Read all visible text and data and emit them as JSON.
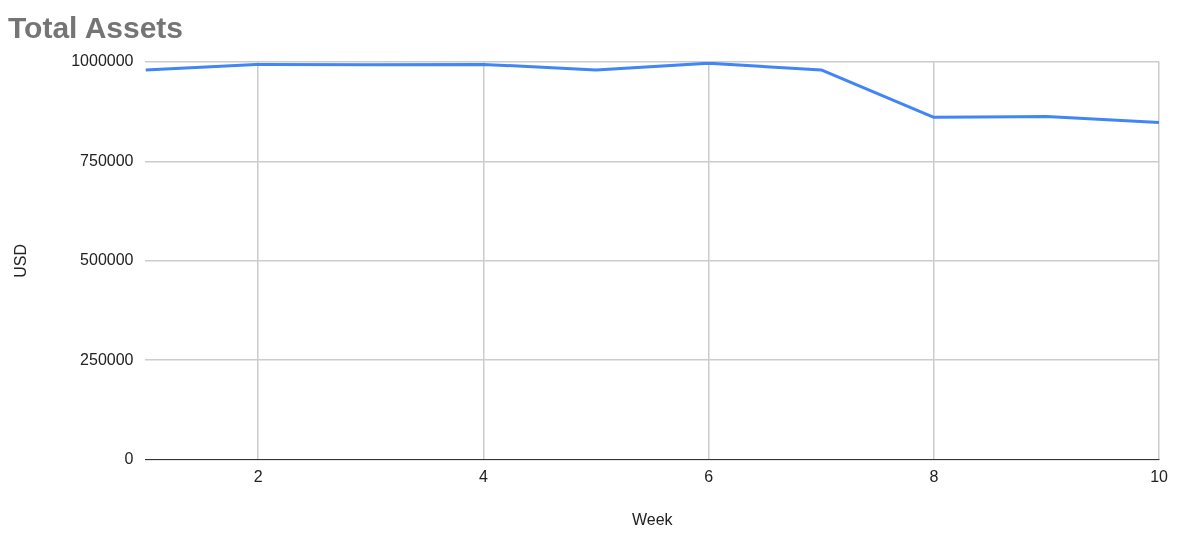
{
  "chart_data": {
    "type": "line",
    "title": "Total Assets",
    "xlabel": "Week",
    "ylabel": "USD",
    "x": [
      1,
      2,
      3,
      4,
      5,
      6,
      7,
      8,
      9,
      10
    ],
    "series": [
      {
        "color": "#4285f4",
        "values": [
          980000,
          994000,
          993000,
          994000,
          980000,
          997000,
          980000,
          861000,
          863000,
          848000
        ]
      }
    ],
    "xlim": [
      1,
      10
    ],
    "xticks": [
      2,
      4,
      6,
      8,
      10
    ],
    "ylim": [
      0,
      1000000
    ],
    "yticks": [
      0,
      250000,
      500000,
      750000,
      1000000
    ],
    "grid": true,
    "legend": false,
    "marker": "none",
    "line_style": "solid"
  }
}
